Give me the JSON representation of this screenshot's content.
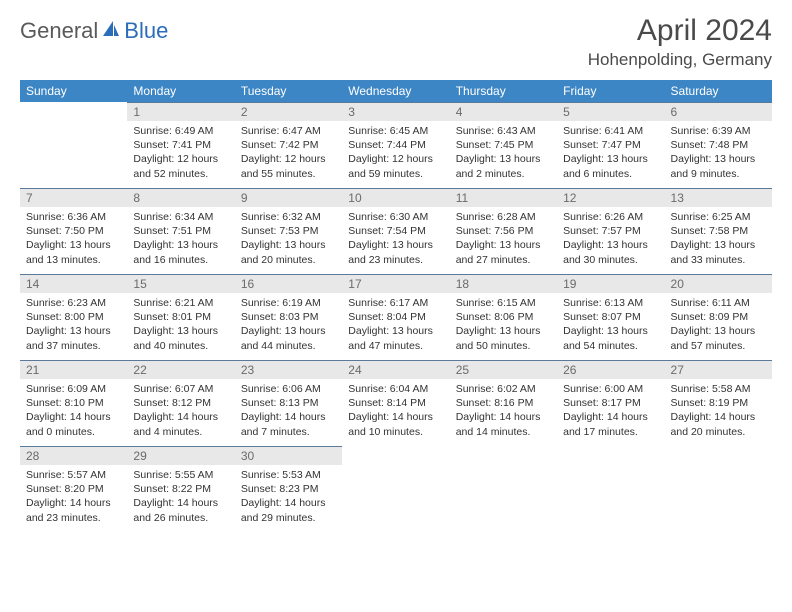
{
  "logo": {
    "part1": "General",
    "part2": "Blue"
  },
  "title": "April 2024",
  "location": "Hohenpolding, Germany",
  "colors": {
    "header_bg": "#3d86c6",
    "header_text": "#ffffff",
    "daynum_bg": "#e8e8e8",
    "daynum_text": "#6b6b6b",
    "border": "#5a7a9a",
    "body_text": "#333333",
    "logo_gray": "#5a5a5a",
    "logo_blue": "#2a6db8"
  },
  "weekdays": [
    "Sunday",
    "Monday",
    "Tuesday",
    "Wednesday",
    "Thursday",
    "Friday",
    "Saturday"
  ],
  "weeks": [
    [
      null,
      {
        "n": "1",
        "sr": "6:49 AM",
        "ss": "7:41 PM",
        "dl": "12 hours and 52 minutes."
      },
      {
        "n": "2",
        "sr": "6:47 AM",
        "ss": "7:42 PM",
        "dl": "12 hours and 55 minutes."
      },
      {
        "n": "3",
        "sr": "6:45 AM",
        "ss": "7:44 PM",
        "dl": "12 hours and 59 minutes."
      },
      {
        "n": "4",
        "sr": "6:43 AM",
        "ss": "7:45 PM",
        "dl": "13 hours and 2 minutes."
      },
      {
        "n": "5",
        "sr": "6:41 AM",
        "ss": "7:47 PM",
        "dl": "13 hours and 6 minutes."
      },
      {
        "n": "6",
        "sr": "6:39 AM",
        "ss": "7:48 PM",
        "dl": "13 hours and 9 minutes."
      }
    ],
    [
      {
        "n": "7",
        "sr": "6:36 AM",
        "ss": "7:50 PM",
        "dl": "13 hours and 13 minutes."
      },
      {
        "n": "8",
        "sr": "6:34 AM",
        "ss": "7:51 PM",
        "dl": "13 hours and 16 minutes."
      },
      {
        "n": "9",
        "sr": "6:32 AM",
        "ss": "7:53 PM",
        "dl": "13 hours and 20 minutes."
      },
      {
        "n": "10",
        "sr": "6:30 AM",
        "ss": "7:54 PM",
        "dl": "13 hours and 23 minutes."
      },
      {
        "n": "11",
        "sr": "6:28 AM",
        "ss": "7:56 PM",
        "dl": "13 hours and 27 minutes."
      },
      {
        "n": "12",
        "sr": "6:26 AM",
        "ss": "7:57 PM",
        "dl": "13 hours and 30 minutes."
      },
      {
        "n": "13",
        "sr": "6:25 AM",
        "ss": "7:58 PM",
        "dl": "13 hours and 33 minutes."
      }
    ],
    [
      {
        "n": "14",
        "sr": "6:23 AM",
        "ss": "8:00 PM",
        "dl": "13 hours and 37 minutes."
      },
      {
        "n": "15",
        "sr": "6:21 AM",
        "ss": "8:01 PM",
        "dl": "13 hours and 40 minutes."
      },
      {
        "n": "16",
        "sr": "6:19 AM",
        "ss": "8:03 PM",
        "dl": "13 hours and 44 minutes."
      },
      {
        "n": "17",
        "sr": "6:17 AM",
        "ss": "8:04 PM",
        "dl": "13 hours and 47 minutes."
      },
      {
        "n": "18",
        "sr": "6:15 AM",
        "ss": "8:06 PM",
        "dl": "13 hours and 50 minutes."
      },
      {
        "n": "19",
        "sr": "6:13 AM",
        "ss": "8:07 PM",
        "dl": "13 hours and 54 minutes."
      },
      {
        "n": "20",
        "sr": "6:11 AM",
        "ss": "8:09 PM",
        "dl": "13 hours and 57 minutes."
      }
    ],
    [
      {
        "n": "21",
        "sr": "6:09 AM",
        "ss": "8:10 PM",
        "dl": "14 hours and 0 minutes."
      },
      {
        "n": "22",
        "sr": "6:07 AM",
        "ss": "8:12 PM",
        "dl": "14 hours and 4 minutes."
      },
      {
        "n": "23",
        "sr": "6:06 AM",
        "ss": "8:13 PM",
        "dl": "14 hours and 7 minutes."
      },
      {
        "n": "24",
        "sr": "6:04 AM",
        "ss": "8:14 PM",
        "dl": "14 hours and 10 minutes."
      },
      {
        "n": "25",
        "sr": "6:02 AM",
        "ss": "8:16 PM",
        "dl": "14 hours and 14 minutes."
      },
      {
        "n": "26",
        "sr": "6:00 AM",
        "ss": "8:17 PM",
        "dl": "14 hours and 17 minutes."
      },
      {
        "n": "27",
        "sr": "5:58 AM",
        "ss": "8:19 PM",
        "dl": "14 hours and 20 minutes."
      }
    ],
    [
      {
        "n": "28",
        "sr": "5:57 AM",
        "ss": "8:20 PM",
        "dl": "14 hours and 23 minutes."
      },
      {
        "n": "29",
        "sr": "5:55 AM",
        "ss": "8:22 PM",
        "dl": "14 hours and 26 minutes."
      },
      {
        "n": "30",
        "sr": "5:53 AM",
        "ss": "8:23 PM",
        "dl": "14 hours and 29 minutes."
      },
      null,
      null,
      null,
      null
    ]
  ],
  "labels": {
    "sunrise": "Sunrise:",
    "sunset": "Sunset:",
    "daylight": "Daylight:"
  }
}
